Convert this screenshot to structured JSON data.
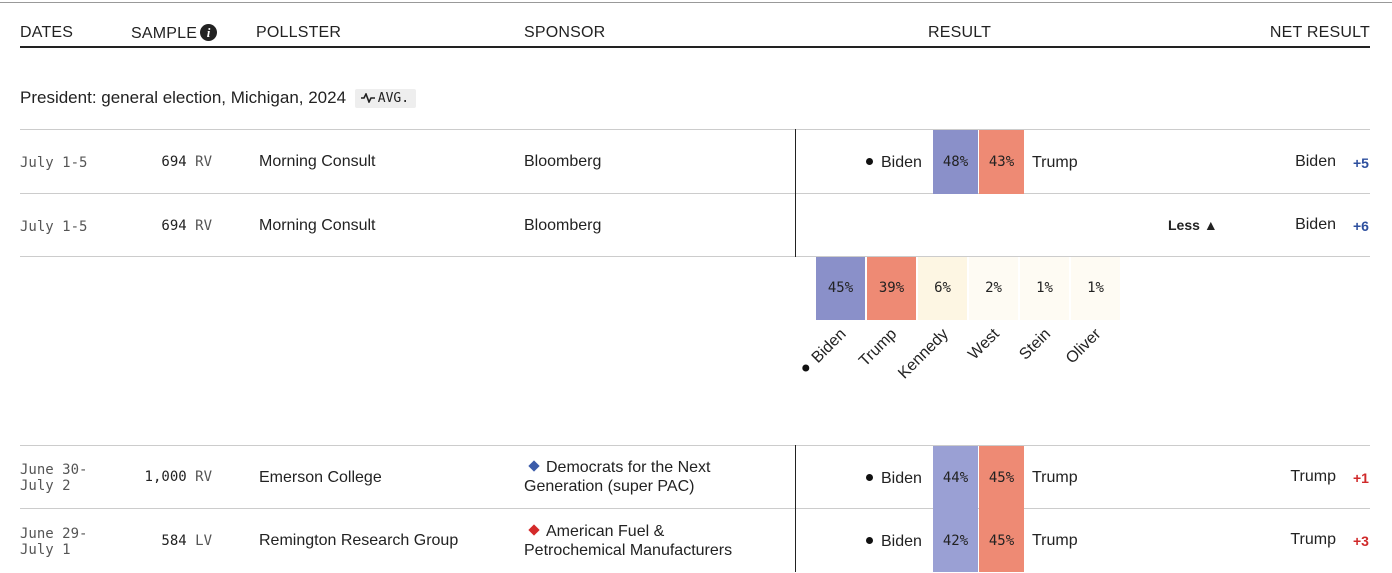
{
  "colors": {
    "dem": "#8a90c9",
    "rep": "#ee8a74",
    "dem_light": "#9aa0d4",
    "rep_light": "#f4a592",
    "other": "#fdf6e3",
    "other_faint": "#fefbf3",
    "dem_text": "#2d4f9e",
    "rep_text": "#d0292a",
    "sponsor_dem": "#3b5ba9",
    "sponsor_rep": "#d42a2a"
  },
  "header": {
    "dates": "DATES",
    "sample": "SAMPLE",
    "sample_icon": "info-icon",
    "pollster": "POLLSTER",
    "sponsor": "SPONSOR",
    "result": "RESULT",
    "net_result": "NET RESULT"
  },
  "section": {
    "title": "President: general election, Michigan, 2024",
    "avg_label": "AVG.",
    "avg_icon": "trend-line-icon"
  },
  "rows": [
    {
      "date_line1": "July 1-5",
      "date_line2": "",
      "sample_n": "694",
      "sample_type": "RV",
      "pollster": "Morning Consult",
      "sponsor": "Bloomberg",
      "left_name": "Biden",
      "left_pct": "48%",
      "right_pct": "43%",
      "right_name": "Trump",
      "net_name": "Biden",
      "net_val": "+5"
    },
    {
      "date_line1": "July 1-5",
      "date_line2": "",
      "sample_n": "694",
      "sample_type": "RV",
      "pollster": "Morning Consult",
      "sponsor": "Bloomberg",
      "toggle_label": "Less",
      "toggle_icon": "triangle-up-icon",
      "net_name": "Biden",
      "net_val": "+6"
    },
    {
      "date_line1": "June 30-",
      "date_line2": "July 2",
      "sample_n": "1,000",
      "sample_type": "RV",
      "pollster": "Emerson College",
      "sponsor_line1": "Democrats for the Next",
      "sponsor_line2": "Generation (super PAC)",
      "sponsor_icon": "diamond-icon",
      "left_name": "Biden",
      "left_pct": "44%",
      "right_pct": "45%",
      "right_name": "Trump",
      "net_name": "Trump",
      "net_val": "+1"
    },
    {
      "date_line1": "June 29-",
      "date_line2": "July 1",
      "sample_n": "584",
      "sample_type": "LV",
      "pollster": "Remington Research Group",
      "sponsor_line1": "American Fuel &",
      "sponsor_line2": "Petrochemical Manufacturers",
      "sponsor_icon": "diamond-icon",
      "left_name": "Biden",
      "left_pct": "42%",
      "right_pct": "45%",
      "right_name": "Trump",
      "net_name": "Trump",
      "net_val": "+3"
    }
  ],
  "expanded": {
    "candidates": [
      {
        "name": "Biden",
        "pct": "45%",
        "winner": true
      },
      {
        "name": "Trump",
        "pct": "39%"
      },
      {
        "name": "Kennedy",
        "pct": "6%"
      },
      {
        "name": "West",
        "pct": "2%"
      },
      {
        "name": "Stein",
        "pct": "1%"
      },
      {
        "name": "Oliver",
        "pct": "1%"
      }
    ]
  }
}
